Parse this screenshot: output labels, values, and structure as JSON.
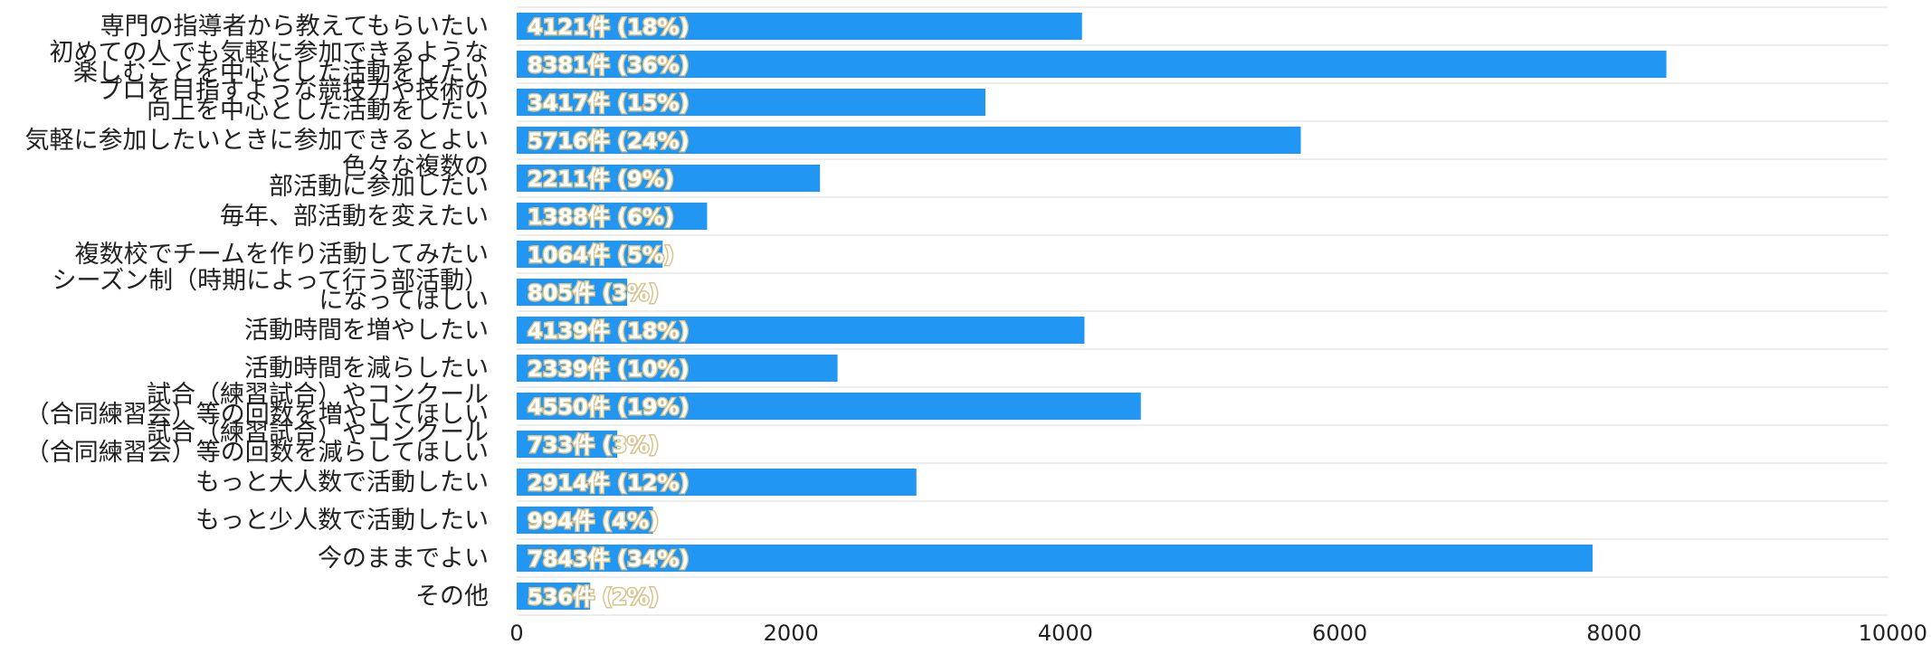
{
  "chart_data": {
    "type": "bar",
    "orientation": "horizontal",
    "categories": [
      [
        "専門の指導者から教えてもらいたい"
      ],
      [
        "初めての人でも気軽に参加できるような",
        "楽しむことを中心とした活動をしたい"
      ],
      [
        "プロを目指すような競技力や技術の",
        "向上を中心とした活動をしたい"
      ],
      [
        "気軽に参加したいときに参加できるとよい"
      ],
      [
        "色々な複数の",
        "部活動に参加したい"
      ],
      [
        "毎年、部活動を変えたい"
      ],
      [
        "複数校でチームを作り活動してみたい"
      ],
      [
        "シーズン制（時期によって行う部活動）",
        "になってほしい"
      ],
      [
        "活動時間を増やしたい"
      ],
      [
        "活動時間を減らしたい"
      ],
      [
        "試合（練習試合）やコンクール",
        "（合同練習会）等の回数を増やしてほしい"
      ],
      [
        "試合（練習試合）やコンクール",
        "（合同練習会）等の回数を減らしてほしい"
      ],
      [
        "もっと大人数で活動したい"
      ],
      [
        "もっと少人数で活動したい"
      ],
      [
        "今のままでよい"
      ],
      [
        "その他"
      ]
    ],
    "values": [
      4121,
      8381,
      3417,
      5716,
      2211,
      1388,
      1064,
      805,
      4139,
      2339,
      4550,
      733,
      2914,
      994,
      7843,
      536
    ],
    "data_labels": [
      "4121件 (18%)",
      "8381件 (36%)",
      "3417件 (15%)",
      "5716件 (24%)",
      "2211件 (9%)",
      "1388件 (6%)",
      "1064件 (5%)",
      "805件 (3%)",
      "4139件 (18%)",
      "2339件 (10%)",
      "4550件 (19%)",
      "733件 (3%)",
      "2914件 (12%)",
      "994件 (4%)",
      "7843件 (34%)",
      "536件 (2%)"
    ],
    "xlim": [
      0,
      10000
    ],
    "xticks": [
      "0",
      "2000",
      "4000",
      "6000",
      "8000",
      "10000"
    ],
    "title": "",
    "xlabel": "",
    "ylabel": "",
    "grid": true,
    "legend": "none",
    "colors": {
      "bar": "#2196f3",
      "grid": "#d9d9d9",
      "text": "#222222"
    }
  }
}
